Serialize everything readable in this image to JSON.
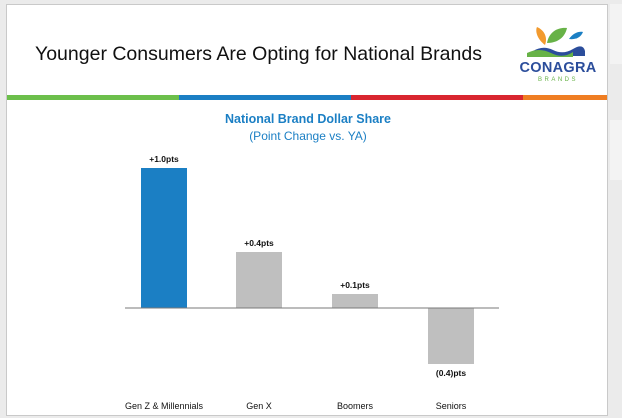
{
  "slide": {
    "title": "Younger Consumers Are Opting for National Brands",
    "logo": {
      "wordmark": "CONAGRA",
      "subtext": "BRANDS"
    }
  },
  "stripe_colors": [
    "#6cbf4b",
    "#6cbf4b",
    "#1b7fc4",
    "#1b7fc4",
    "#d9262f",
    "#d9262f",
    "#ef7d22"
  ],
  "chart_data": {
    "type": "bar",
    "title": "National Brand Dollar Share",
    "subtitle": "(Point Change vs. YA)",
    "categories": [
      "Gen Z & Millennials",
      "Gen X",
      "Boomers",
      "Seniors"
    ],
    "values": [
      1.0,
      0.4,
      0.1,
      -0.4
    ],
    "data_labels": [
      "+1.0pts",
      "+0.4pts",
      "+0.1pts",
      "(0.4)pts"
    ],
    "colors": [
      "#1b7fc4",
      "#bfbfbf",
      "#bfbfbf",
      "#bfbfbf"
    ],
    "xlabel": "",
    "ylabel": "",
    "ylim": [
      -0.4,
      1.0
    ],
    "grid": false,
    "legend": "none"
  }
}
